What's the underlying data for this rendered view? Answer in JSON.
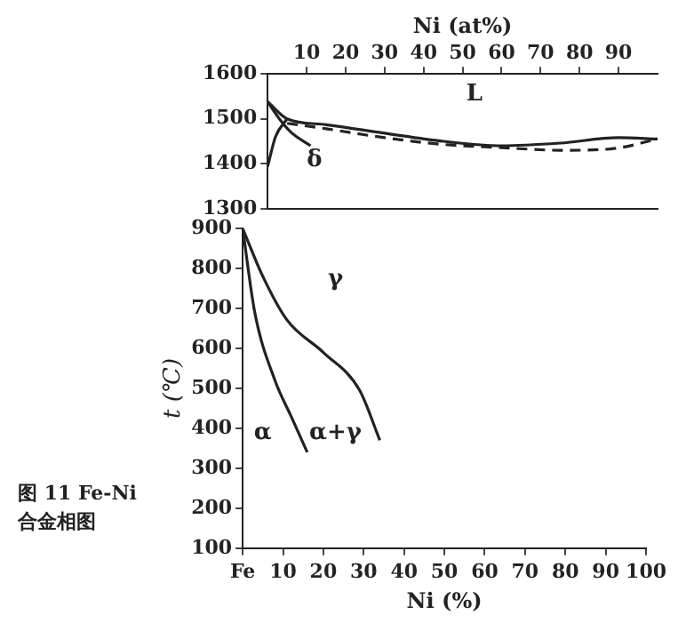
{
  "chart_data": [
    {
      "type": "line",
      "x2label": "Ni (at%)",
      "xlim": [
        0,
        100
      ],
      "x2lim": [
        0,
        100
      ],
      "x2ticks": [
        10,
        20,
        30,
        40,
        50,
        60,
        70,
        80,
        90
      ],
      "ylim": [
        1300,
        1600
      ],
      "yticks": [
        1300,
        1400,
        1500,
        1600
      ],
      "grid": false,
      "marker": "none",
      "legend": false,
      "series": [
        {
          "color": "#222222",
          "line_style": "solid",
          "x": [
            0,
            5,
            15,
            30,
            45,
            60,
            75,
            90,
            100
          ],
          "values": [
            1538,
            1500,
            1487,
            1468,
            1450,
            1440,
            1446,
            1458,
            1455
          ]
        },
        {
          "color": "#222222",
          "line_style": "dashed",
          "x": [
            5,
            15,
            30,
            45,
            60,
            75,
            88,
            100
          ],
          "values": [
            1490,
            1478,
            1458,
            1443,
            1436,
            1430,
            1433,
            1455
          ]
        },
        {
          "color": "#222222",
          "line_style": "solid",
          "x": [
            0,
            2,
            5
          ],
          "values": [
            1394,
            1460,
            1500
          ]
        },
        {
          "color": "#222222",
          "line_style": "solid",
          "x": [
            0,
            3,
            6,
            11
          ],
          "values": [
            1538,
            1500,
            1470,
            1440
          ]
        }
      ],
      "annotations": [
        "L",
        "δ"
      ]
    },
    {
      "type": "line",
      "title": "图 11  Fe-Ni 合金相图",
      "xlabel": "Ni (%)",
      "ylabel": "t (℃)",
      "xlim": [
        0,
        100
      ],
      "xticks": [
        {
          "value": 0,
          "label": "Fe"
        },
        10,
        20,
        30,
        40,
        50,
        60,
        70,
        80,
        90,
        100
      ],
      "ylim": [
        100,
        900
      ],
      "yticks": [
        100,
        200,
        300,
        400,
        500,
        600,
        700,
        800,
        900
      ],
      "grid": false,
      "marker": "none",
      "legend": false,
      "series": [
        {
          "color": "#222222",
          "line_style": "solid",
          "x": [
            0,
            5,
            11,
            20,
            29,
            34
          ],
          "values": [
            900,
            780,
            671,
            590,
            495,
            370
          ]
        },
        {
          "color": "#222222",
          "line_style": "solid",
          "x": [
            0,
            3,
            8,
            12,
            16
          ],
          "values": [
            900,
            690,
            520,
            430,
            340
          ]
        }
      ],
      "annotations": [
        "γ",
        "α",
        "α+γ"
      ]
    }
  ]
}
